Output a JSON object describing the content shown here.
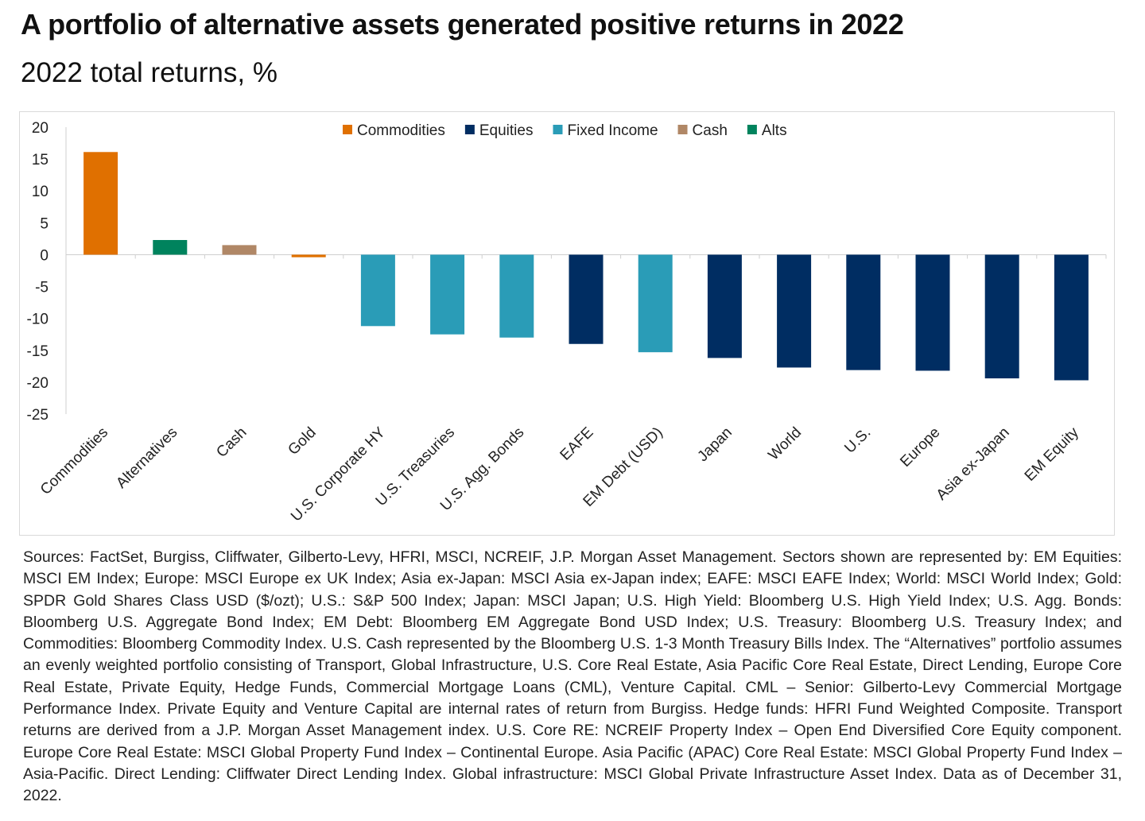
{
  "header": {
    "title": "A portfolio of alternative assets generated positive returns in 2022",
    "subtitle": "2022 total returns, %"
  },
  "colors": {
    "Commodities": "#e07000",
    "Equities": "#002d62",
    "Fixed Income": "#2a9cb7",
    "Cash": "#b08766",
    "Alts": "#00835d",
    "axis": "#cfcfcf"
  },
  "chart_data": {
    "type": "bar",
    "title": "A portfolio of alternative assets generated positive returns in 2022",
    "subtitle": "2022 total returns, %",
    "xlabel": "",
    "ylabel": "",
    "ylim": [
      -25,
      20
    ],
    "yticks": [
      20,
      15,
      10,
      5,
      0,
      -5,
      -10,
      -15,
      -20,
      -25
    ],
    "legend_position": "top-center",
    "legend": [
      "Commodities",
      "Equities",
      "Fixed Income",
      "Cash",
      "Alts"
    ],
    "categories": [
      "Commodities",
      "Alternatives",
      "Cash",
      "Gold",
      "U.S. Corporate HY",
      "U.S. Treasuries",
      "U.S. Agg. Bonds",
      "EAFE",
      "EM Debt (USD)",
      "Japan",
      "World",
      "U.S.",
      "Europe",
      "Asia ex-Japan",
      "EM Equity"
    ],
    "values": [
      16.1,
      2.3,
      1.5,
      -0.4,
      -11.2,
      -12.5,
      -13.0,
      -14.0,
      -15.3,
      -16.2,
      -17.7,
      -18.1,
      -18.2,
      -19.4,
      -19.7
    ],
    "groups": [
      "Commodities",
      "Alts",
      "Cash",
      "Commodities",
      "Fixed Income",
      "Fixed Income",
      "Fixed Income",
      "Equities",
      "Fixed Income",
      "Equities",
      "Equities",
      "Equities",
      "Equities",
      "Equities",
      "Equities"
    ]
  },
  "source_note": "Sources: FactSet, Burgiss, Cliffwater, Gilberto-Levy, HFRI, MSCI, NCREIF, J.P. Morgan Asset Management. Sectors shown are represented by: EM Equities: MSCI EM Index; Europe: MSCI Europe ex UK Index; Asia ex-Japan: MSCI Asia ex-Japan index; EAFE: MSCI EAFE Index; World: MSCI World Index; Gold: SPDR Gold Shares Class USD ($/ozt); U.S.: S&P 500 Index; Japan: MSCI Japan; U.S. High Yield: Bloomberg U.S. High Yield Index; U.S. Agg. Bonds: Bloomberg U.S. Aggregate Bond Index; EM Debt: Bloomberg EM Aggregate Bond USD Index; U.S. Treasury: Bloomberg U.S. Treasury Index; and Commodities: Bloomberg Commodity Index.  U.S. Cash represented by the Bloomberg U.S. 1-3 Month Treasury Bills Index. The “Alternatives” portfolio assumes an evenly weighted portfolio consisting of Transport, Global Infrastructure, U.S. Core Real Estate, Asia Pacific Core Real Estate, Direct Lending, Europe Core Real Estate, Private Equity, Hedge Funds, Commercial Mortgage Loans (CML), Venture Capital. CML – Senior: Gilberto-Levy Commercial Mortgage Performance Index. Private Equity and Venture Capital are internal rates of return from Burgiss. Hedge funds: HFRI Fund Weighted Composite. Transport returns are derived from a J.P. Morgan Asset Management index. U.S. Core RE: NCREIF Property Index – Open End Diversified Core Equity component. Europe Core Real Estate: MSCI Global Property Fund Index – Continental Europe. Asia Pacific (APAC) Core Real Estate: MSCI Global Property Fund Index – Asia-Pacific. Direct Lending: Cliffwater Direct Lending Index. Global infrastructure: MSCI Global Private Infrastructure Asset Index. Data as of December 31, 2022."
}
